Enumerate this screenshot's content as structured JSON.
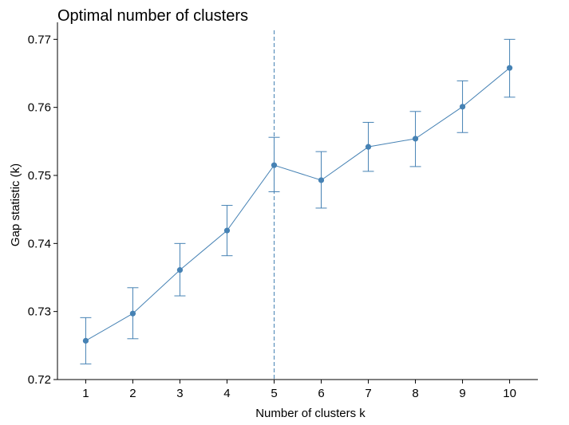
{
  "chart_data": {
    "type": "line",
    "title": "Optimal number of clusters",
    "xlabel": "Number of clusters k",
    "ylabel": "Gap statistic (k)",
    "categories": [
      "1",
      "2",
      "3",
      "4",
      "5",
      "6",
      "7",
      "8",
      "9",
      "10"
    ],
    "x": [
      1,
      2,
      3,
      4,
      5,
      6,
      7,
      8,
      9,
      10
    ],
    "series": [
      {
        "name": "gap",
        "values": [
          0.7257,
          0.7297,
          0.7361,
          0.7419,
          0.7515,
          0.7493,
          0.7542,
          0.7554,
          0.7601,
          0.7658
        ],
        "error_lower": [
          0.7223,
          0.726,
          0.7323,
          0.7382,
          0.7476,
          0.7452,
          0.7506,
          0.7513,
          0.7563,
          0.7615
        ],
        "error_upper": [
          0.7291,
          0.7335,
          0.74,
          0.7456,
          0.7556,
          0.7535,
          0.7578,
          0.7594,
          0.7639,
          0.77
        ]
      }
    ],
    "optimal_k": 5,
    "xlim": [
      0.4,
      10.6
    ],
    "ylim": [
      0.72,
      0.7725
    ],
    "yticks": [
      0.72,
      0.73,
      0.74,
      0.75,
      0.76,
      0.77
    ],
    "ytick_labels": [
      "0.72",
      "0.73",
      "0.74",
      "0.75",
      "0.76",
      "0.77"
    ],
    "xticks": [
      1,
      2,
      3,
      4,
      5,
      6,
      7,
      8,
      9,
      10
    ],
    "grid": false,
    "legend": "none",
    "colors": {
      "series": "#4682B4",
      "axis": "#000000"
    }
  }
}
